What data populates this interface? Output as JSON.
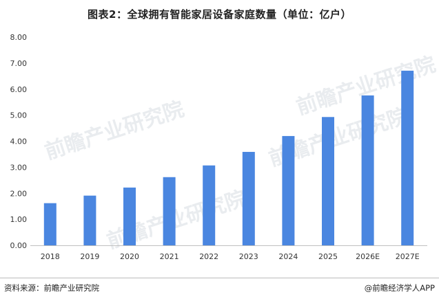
{
  "title": "图表2：全球拥有智能家居设备家庭数量（单位：亿户）",
  "chart_data": {
    "type": "bar",
    "categories": [
      "2018",
      "2019",
      "2020",
      "2021",
      "2022",
      "2023",
      "2024",
      "2025",
      "2026E",
      "2027E"
    ],
    "values": [
      1.62,
      1.91,
      2.22,
      2.62,
      3.07,
      3.59,
      4.2,
      4.93,
      5.76,
      6.71
    ],
    "yticks": [
      "0.00",
      "1.00",
      "2.00",
      "3.00",
      "4.00",
      "5.00",
      "6.00",
      "7.00",
      "8.00"
    ],
    "ylim": [
      0,
      8
    ],
    "bar_color": "#4a86e0",
    "grid": false
  },
  "footer": {
    "source": "资料来源：前瞻产业研究院",
    "brand": "@前瞻经济学人APP"
  },
  "watermark": {
    "text": "前瞻产业研究院"
  }
}
